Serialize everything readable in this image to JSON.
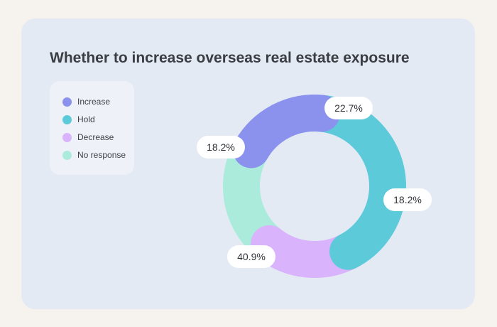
{
  "chart_data": {
    "type": "pie",
    "title": "Whether to increase overseas real estate exposure",
    "categories": [
      "Increase",
      "Hold",
      "Decrease",
      "No response"
    ],
    "values": [
      18.2,
      40.9,
      18.2,
      22.7
    ],
    "value_labels": [
      "18.2%",
      "40.9%",
      "18.2%",
      "22.7%"
    ],
    "colors": [
      "#8a92ee",
      "#5ccad9",
      "#d9b3fb",
      "#abebdc"
    ],
    "legend_placement": "top-left",
    "donut": true
  }
}
